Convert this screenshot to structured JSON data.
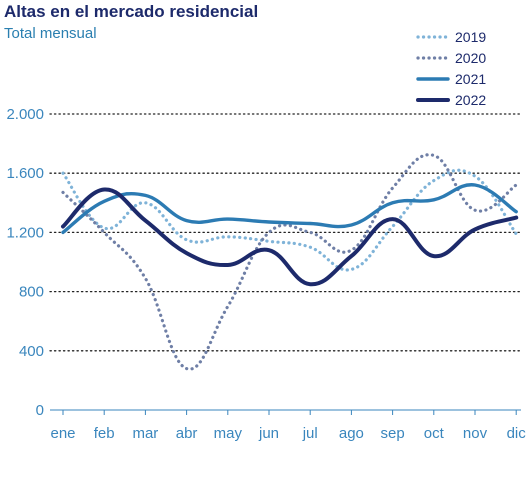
{
  "title": "Altas en el mercado residencial",
  "subtitle": "Total mensual",
  "chart_data": {
    "type": "line",
    "title": "Altas en el mercado residencial",
    "subtitle": "Total mensual",
    "categories": [
      "ene",
      "feb",
      "mar",
      "abr",
      "may",
      "jun",
      "jul",
      "ago",
      "sep",
      "oct",
      "nov",
      "dic"
    ],
    "ylim": [
      0,
      2000
    ],
    "yticks": [
      0,
      400,
      800,
      1200,
      1600,
      2000
    ],
    "ytick_labels": [
      "0",
      "400",
      "800",
      "1.200",
      "1.600",
      "2.000"
    ],
    "grid": true,
    "legend_position": "top-right",
    "series": [
      {
        "name": "2019",
        "color": "#7fb3d8",
        "style": "dotted",
        "values": [
          1600,
          1230,
          1400,
          1150,
          1170,
          1140,
          1100,
          950,
          1240,
          1550,
          1580,
          1190
        ]
      },
      {
        "name": "2020",
        "color": "#6f7fa6",
        "style": "dotted",
        "values": [
          1470,
          1200,
          890,
          280,
          700,
          1200,
          1200,
          1080,
          1500,
          1720,
          1350,
          1520
        ]
      },
      {
        "name": "2021",
        "color": "#2c7bb3",
        "style": "solid",
        "values": [
          1200,
          1410,
          1450,
          1280,
          1290,
          1270,
          1260,
          1250,
          1400,
          1420,
          1520,
          1340
        ]
      },
      {
        "name": "2022",
        "color": "#1d2a6b",
        "style": "solid",
        "values": [
          1240,
          1490,
          1280,
          1060,
          980,
          1080,
          850,
          1040,
          1290,
          1040,
          1220,
          1300
        ]
      }
    ]
  }
}
